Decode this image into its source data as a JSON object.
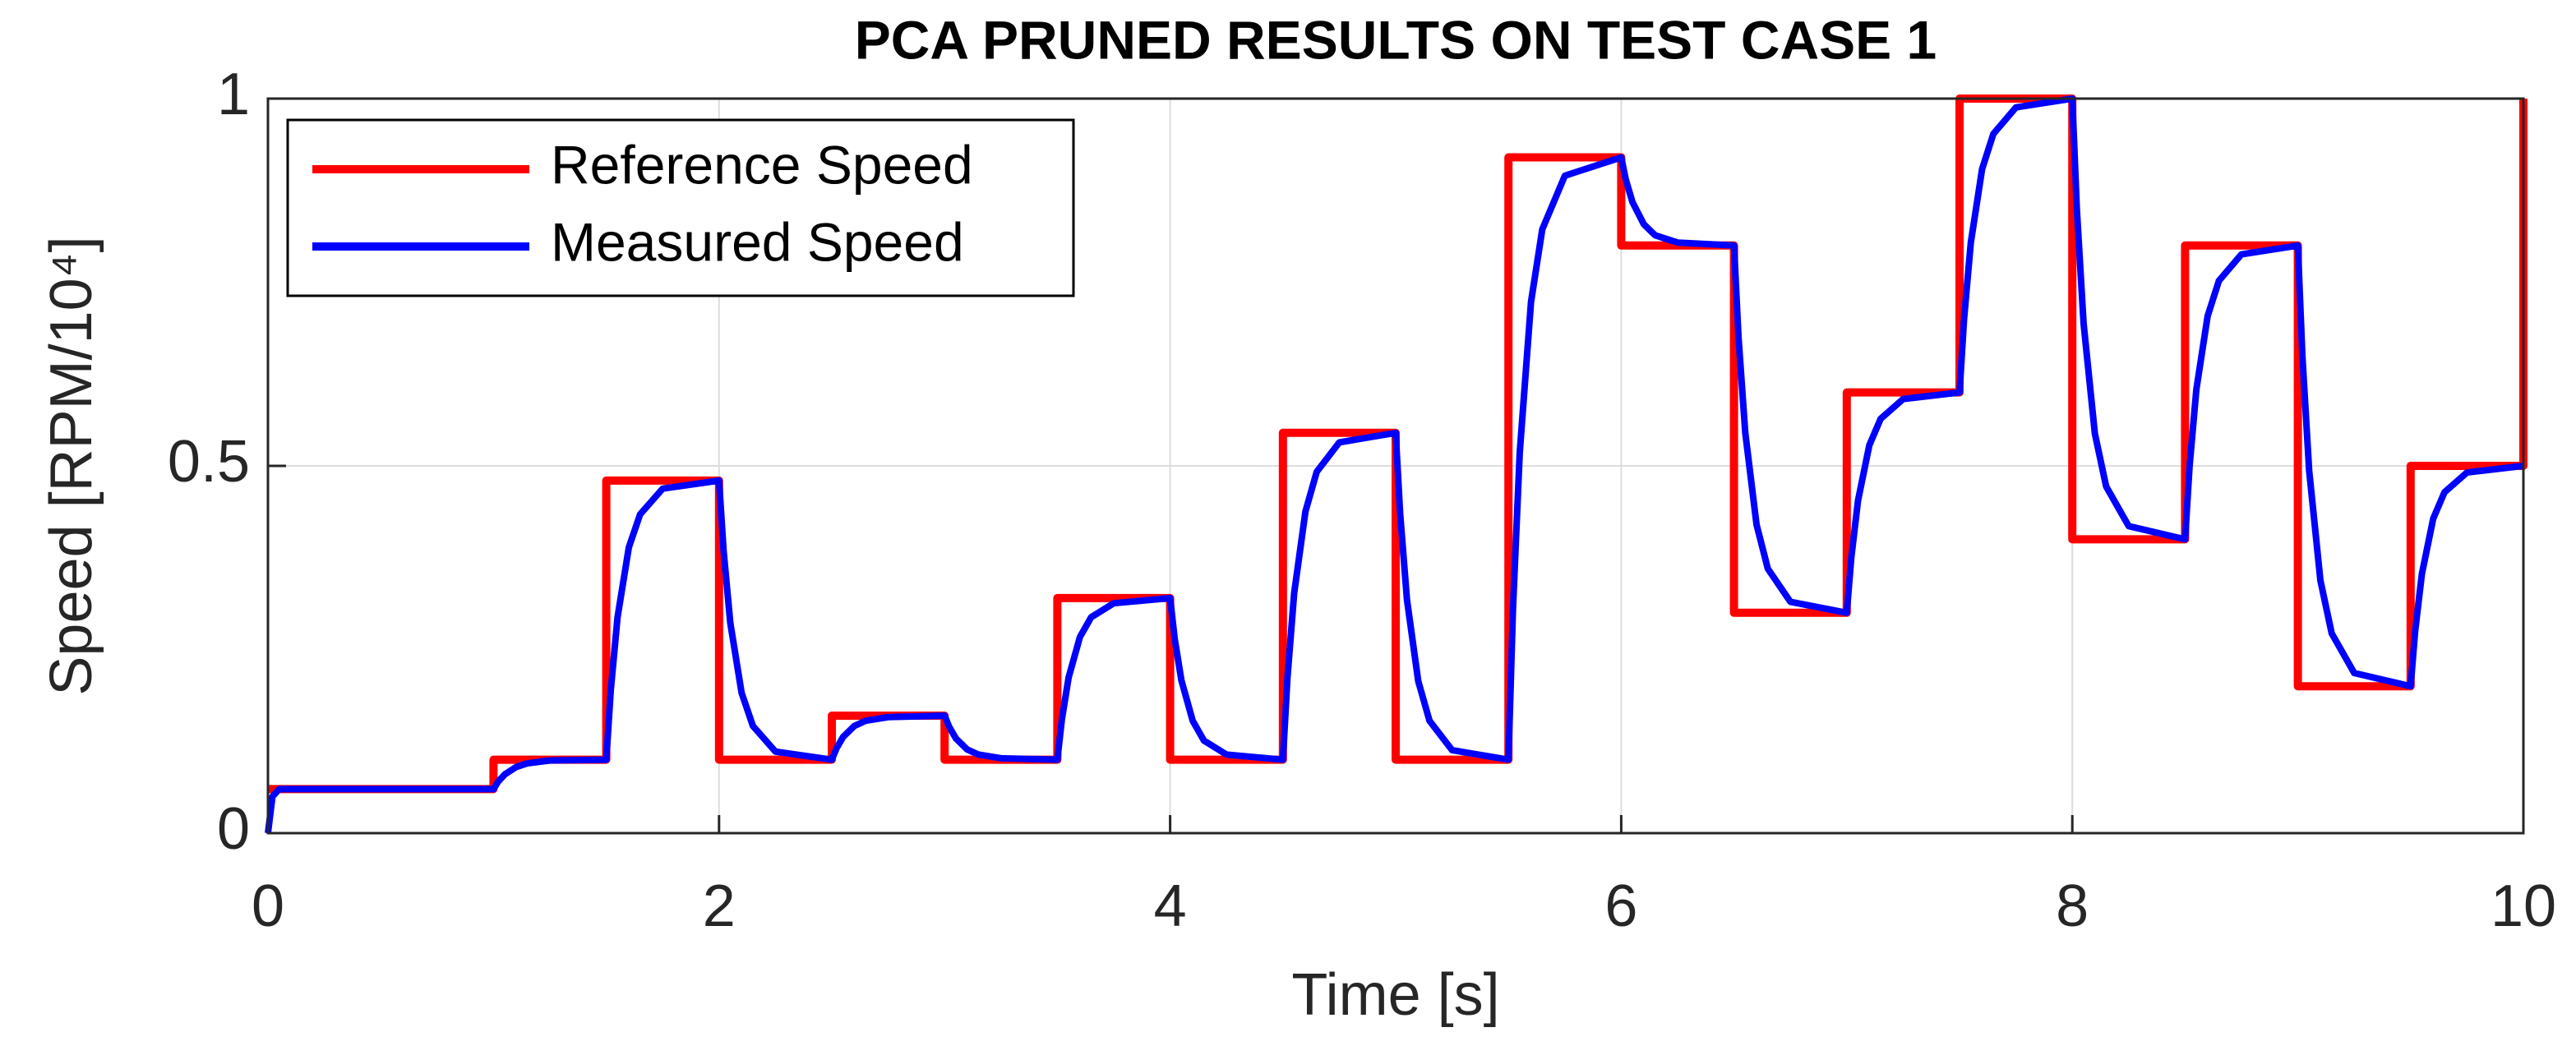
{
  "chart_data": {
    "type": "line",
    "title": "PCA PRUNED RESULTS ON TEST CASE 1",
    "xlabel": "Time [s]",
    "ylabel": "Speed  [RPM/10⁴]",
    "xlim": [
      0,
      10
    ],
    "ylim": [
      0,
      1
    ],
    "xticks": [
      0,
      2,
      4,
      6,
      8,
      10
    ],
    "yticks": [
      0,
      0.5,
      1
    ],
    "grid": true,
    "legend": "upper left",
    "series": [
      {
        "name": "Reference Speed",
        "color": "#ff0000",
        "x": [
          0,
          1,
          1,
          1.5,
          1.5,
          2,
          2,
          2.5,
          2.5,
          3,
          3,
          3.5,
          3.5,
          4,
          4,
          4.5,
          4.5,
          5,
          5,
          5.5,
          5.5,
          6,
          6,
          6.5,
          6.5,
          7,
          7,
          7.5,
          7.5,
          8,
          8,
          8.5,
          8.5,
          9,
          9,
          9.5,
          9.5,
          10,
          10
        ],
        "values": [
          0.06,
          0.06,
          0.1,
          0.1,
          0.48,
          0.48,
          0.1,
          0.1,
          0.16,
          0.16,
          0.1,
          0.1,
          0.32,
          0.32,
          0.1,
          0.1,
          0.545,
          0.545,
          0.1,
          0.1,
          0.92,
          0.92,
          0.8,
          0.8,
          0.3,
          0.3,
          0.6,
          0.6,
          1,
          1,
          0.4,
          0.4,
          0.8,
          0.8,
          0.2,
          0.2,
          0.5,
          0.5,
          1
        ]
      },
      {
        "name": "Measured Speed",
        "color": "#0000ff",
        "x": [
          0,
          0.02,
          0.05,
          1,
          1.02,
          1.05,
          1.1,
          1.15,
          1.25,
          1.5,
          1.52,
          1.55,
          1.6,
          1.65,
          1.75,
          2,
          2.02,
          2.05,
          2.1,
          2.15,
          2.25,
          2.5,
          2.52,
          2.55,
          2.6,
          2.65,
          2.75,
          3,
          3.02,
          3.05,
          3.1,
          3.15,
          3.25,
          3.5,
          3.52,
          3.55,
          3.6,
          3.65,
          3.75,
          4,
          4.02,
          4.05,
          4.1,
          4.15,
          4.25,
          4.5,
          4.52,
          4.55,
          4.6,
          4.65,
          4.75,
          5,
          5.02,
          5.05,
          5.1,
          5.15,
          5.25,
          5.5,
          5.52,
          5.55,
          5.6,
          5.65,
          5.75,
          6,
          6.02,
          6.05,
          6.1,
          6.15,
          6.25,
          6.5,
          6.52,
          6.55,
          6.6,
          6.65,
          6.75,
          7,
          7.02,
          7.05,
          7.1,
          7.15,
          7.25,
          7.5,
          7.52,
          7.55,
          7.6,
          7.65,
          7.75,
          8,
          8.02,
          8.05,
          8.1,
          8.15,
          8.25,
          8.5,
          8.52,
          8.55,
          8.6,
          8.65,
          8.75,
          9,
          9.02,
          9.05,
          9.1,
          9.15,
          9.25,
          9.5,
          9.52,
          9.55,
          9.6,
          9.65,
          9.75,
          10
        ],
        "values": [
          0,
          0.05,
          0.06,
          0.06,
          0.07,
          0.08,
          0.09,
          0.095,
          0.099,
          0.1,
          0.195,
          0.294,
          0.389,
          0.434,
          0.469,
          0.48,
          0.385,
          0.286,
          0.191,
          0.146,
          0.111,
          0.1,
          0.115,
          0.131,
          0.146,
          0.153,
          0.158,
          0.16,
          0.145,
          0.129,
          0.114,
          0.107,
          0.102,
          0.1,
          0.155,
          0.212,
          0.267,
          0.294,
          0.313,
          0.32,
          0.265,
          0.208,
          0.153,
          0.126,
          0.107,
          0.1,
          0.211,
          0.327,
          0.438,
          0.492,
          0.532,
          0.545,
          0.434,
          0.318,
          0.207,
          0.153,
          0.113,
          0.1,
          0.305,
          0.518,
          0.723,
          0.822,
          0.895,
          0.92,
          0.89,
          0.859,
          0.829,
          0.814,
          0.804,
          0.8,
          0.675,
          0.545,
          0.42,
          0.36,
          0.315,
          0.3,
          0.375,
          0.453,
          0.528,
          0.564,
          0.591,
          0.6,
          0.7,
          0.804,
          0.904,
          0.952,
          0.988,
          1,
          0.85,
          0.694,
          0.544,
          0.472,
          0.418,
          0.4,
          0.5,
          0.604,
          0.704,
          0.752,
          0.788,
          0.8,
          0.65,
          0.494,
          0.344,
          0.272,
          0.218,
          0.2,
          0.275,
          0.353,
          0.428,
          0.464,
          0.491,
          0.5
        ]
      }
    ]
  }
}
